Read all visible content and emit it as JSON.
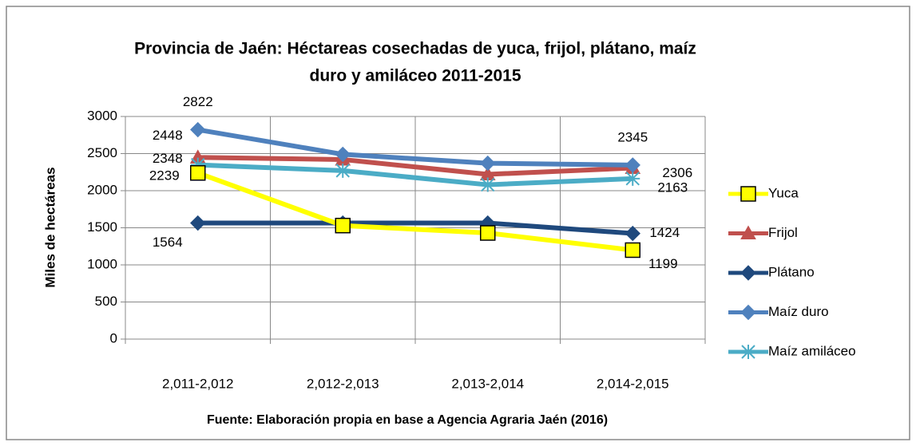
{
  "chart_data": {
    "type": "line",
    "title": [
      "Provincia de Jaén: Héctareas cosechadas de yuca, frijol, plátano, maíz",
      "duro y amiláceo 2011-2015"
    ],
    "ylabel": "Miles de hectáreas",
    "footer": "Fuente: Elaboración propia en base a Agencia Agraria Jaén (2016)",
    "categories": [
      "2,011-2,012",
      "2,012-2,013",
      "2,013-2,014",
      "2,014-2,015"
    ],
    "ylim": [
      0,
      3000
    ],
    "yticks": [
      0,
      500,
      1000,
      1500,
      2000,
      2500,
      3000
    ],
    "grid": true,
    "legend": "right",
    "series": [
      {
        "name": "Yuca",
        "color": "#ffff00",
        "marker": "square",
        "values": [
          2239,
          1530,
          1430,
          1199
        ],
        "value_labels": [
          "2239",
          null,
          null,
          "1199"
        ]
      },
      {
        "name": "Frijol",
        "color": "#c0504d",
        "marker": "triangle",
        "values": [
          2448,
          2420,
          2220,
          2306
        ],
        "value_labels": [
          "2448",
          null,
          null,
          "2306"
        ]
      },
      {
        "name": "Plátano",
        "color": "#1f497d",
        "marker": "diamond",
        "values": [
          1564,
          1564,
          1564,
          1424
        ],
        "value_labels": [
          "1564",
          null,
          null,
          "1424"
        ]
      },
      {
        "name": "Maíz duro",
        "color": "#4f81bd",
        "marker": "diamond",
        "values": [
          2822,
          2490,
          2370,
          2345
        ],
        "value_labels": [
          "2822",
          null,
          null,
          "2345"
        ]
      },
      {
        "name": "Maíz amiláceo",
        "color": "#4bacc6",
        "marker": "star",
        "values": [
          2348,
          2270,
          2080,
          2163
        ],
        "value_labels": [
          "2348",
          null,
          null,
          "2163"
        ]
      }
    ]
  }
}
